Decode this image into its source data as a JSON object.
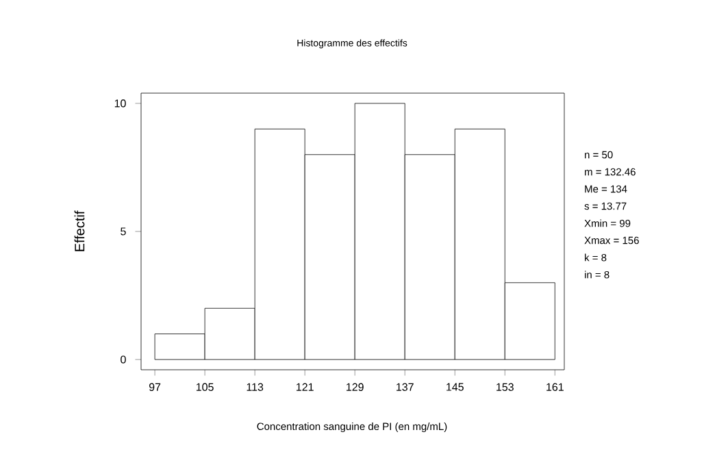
{
  "chart_data": {
    "type": "histogram",
    "title": "Histogramme des effectifs",
    "xlabel": "Concentration sanguine de PI (en mg/mL)",
    "ylabel": "Effectif",
    "bins": [
      97,
      105,
      113,
      121,
      129,
      137,
      145,
      153,
      161
    ],
    "values": [
      1,
      2,
      9,
      8,
      10,
      8,
      9,
      3
    ],
    "color": "#ffffff",
    "xlim": [
      94.8,
      162.5
    ],
    "ylim": [
      -0.4,
      10.4
    ],
    "xticks": [
      97,
      105,
      113,
      121,
      129,
      137,
      145,
      153,
      161
    ],
    "yticks": [
      0,
      5,
      10
    ],
    "grid": false,
    "annotations": [
      "n = 50",
      "m = 132.46",
      "Me = 134",
      "s  = 13.77",
      "Xmin = 99",
      "Xmax = 156",
      "k = 8",
      "in = 8"
    ]
  }
}
